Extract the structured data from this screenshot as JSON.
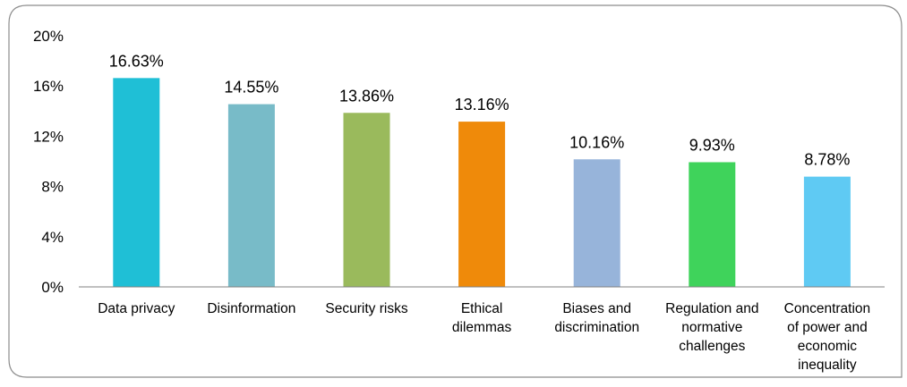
{
  "chart_data": {
    "type": "bar",
    "title": "",
    "xlabel": "",
    "ylabel": "",
    "ylim": [
      0,
      20
    ],
    "yticks": [
      0,
      4,
      8,
      12,
      16,
      20
    ],
    "ytick_labels": [
      "0%",
      "4%",
      "8%",
      "12%",
      "16%",
      "20%"
    ],
    "grid": false,
    "legend": "none",
    "categories": [
      [
        "Data privacy"
      ],
      [
        "Disinformation"
      ],
      [
        "Security risks"
      ],
      [
        "Ethical",
        "dilemmas"
      ],
      [
        "Biases and",
        "discrimination"
      ],
      [
        "Regulation and",
        "normative",
        "challenges"
      ],
      [
        "Concentration",
        "of power and",
        "economic",
        "inequality"
      ]
    ],
    "values": [
      16.63,
      14.55,
      13.86,
      13.16,
      10.16,
      9.93,
      8.78
    ],
    "value_labels": [
      "16.63%",
      "14.55%",
      "13.86%",
      "13.16%",
      "10.16%",
      "9.93%",
      "8.78%"
    ],
    "colors": [
      "#1fbfd6",
      "#78bbc8",
      "#9aba5c",
      "#ef8a0a",
      "#97b4da",
      "#3fd35b",
      "#5fcaf3"
    ],
    "frame_color": "#8c8c8c",
    "axis_color": "#808080"
  }
}
